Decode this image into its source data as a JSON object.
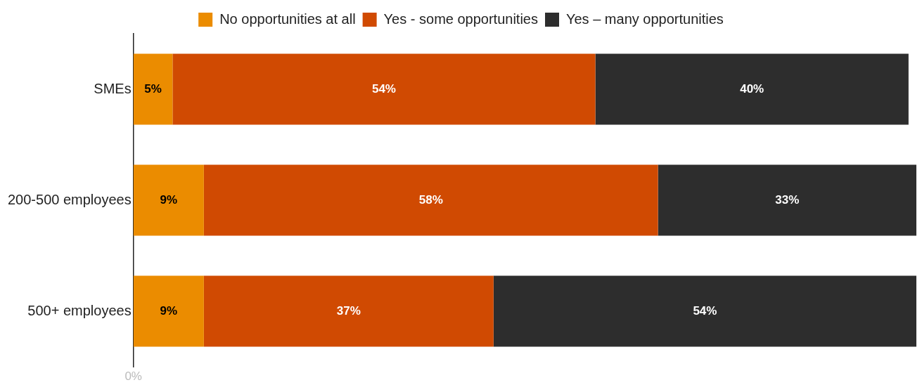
{
  "chart_data": {
    "type": "bar",
    "orientation": "horizontal",
    "stacked": true,
    "categories": [
      "SMEs",
      "200-500 employees",
      "500+ employees"
    ],
    "series": [
      {
        "name": "No opportunities at all",
        "color": "#eb8c00",
        "values": [
          5,
          9,
          9
        ],
        "value_labels": [
          "5%",
          "9%",
          "9%"
        ]
      },
      {
        "name": "Yes - some opportunities",
        "color": "#d04a02",
        "values": [
          54,
          58,
          37
        ],
        "value_labels": [
          "54%",
          "58%",
          "37%"
        ]
      },
      {
        "name": "Yes – many opportunities",
        "color": "#2d2d2d",
        "values": [
          40,
          33,
          54
        ],
        "value_labels": [
          "40%",
          "33%",
          "54%"
        ]
      }
    ],
    "xlim": [
      0,
      100
    ],
    "annotations": [
      "0%"
    ],
    "legend": "top",
    "grid": false
  }
}
